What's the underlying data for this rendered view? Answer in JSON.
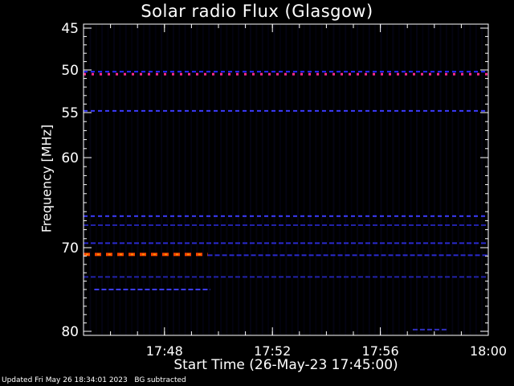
{
  "chart_data": {
    "type": "heatmap",
    "title": "Solar radio Flux (Glasgow)",
    "xlabel": "Start Time (26-May-23 17:45:00)",
    "ylabel": "Frequency [MHz]",
    "xlim_minutes_after_start": [
      0,
      15
    ],
    "ylim": [
      45,
      80
    ],
    "x_ticks": [
      {
        "label": "17:48",
        "value": 3
      },
      {
        "label": "17:52",
        "value": 7
      },
      {
        "label": "17:56",
        "value": 11
      },
      {
        "label": "18:00",
        "value": 15
      }
    ],
    "y_ticks": [
      45,
      50,
      55,
      60,
      70,
      80
    ],
    "background_color": "#000000",
    "intensity_colors": {
      "low": "#1a1a8c",
      "mid": "#3c3cff",
      "high_magenta": "#ff2a8c",
      "high_red": "#ff2200",
      "peak": "#ff8c00"
    },
    "bands": [
      {
        "freq": 50.2,
        "start_min": 0.0,
        "end_min": 15.0,
        "level": "medium",
        "color": "#2a2aff"
      },
      {
        "freq": 50.5,
        "start_min": 0.0,
        "end_min": 15.0,
        "level": "high-intermittent",
        "color": "#ff2a8c"
      },
      {
        "freq": 54.8,
        "start_min": 0.0,
        "end_min": 15.0,
        "level": "medium",
        "color": "#3c3cff"
      },
      {
        "freq": 66.5,
        "start_min": 0.0,
        "end_min": 15.0,
        "level": "medium",
        "color": "#3c3cff"
      },
      {
        "freq": 67.5,
        "start_min": 0.0,
        "end_min": 15.0,
        "level": "low",
        "color": "#2222aa"
      },
      {
        "freq": 69.5,
        "start_min": 0.0,
        "end_min": 15.0,
        "level": "low",
        "color": "#2a2ad0"
      },
      {
        "freq": 70.8,
        "start_min": 0.0,
        "end_min": 4.6,
        "level": "peak",
        "color": "#ff4400"
      },
      {
        "freq": 70.9,
        "start_min": 4.6,
        "end_min": 15.0,
        "level": "low",
        "color": "#2a2ad0"
      },
      {
        "freq": 73.5,
        "start_min": 0.0,
        "end_min": 15.0,
        "level": "low",
        "color": "#2222aa"
      },
      {
        "freq": 75.0,
        "start_min": 0.4,
        "end_min": 4.7,
        "level": "low",
        "color": "#3c3cff"
      },
      {
        "freq": 79.8,
        "start_min": 12.2,
        "end_min": 13.5,
        "level": "low",
        "color": "#3030c0"
      }
    ]
  },
  "footer": {
    "updated": "Updated Fri May 26 18:34:01 2023",
    "note": "BG subtracted"
  }
}
